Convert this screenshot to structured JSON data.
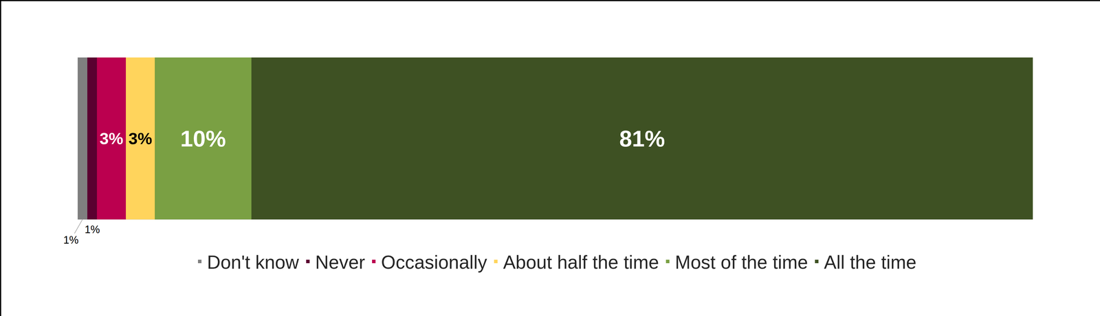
{
  "chart_data": {
    "type": "bar",
    "orientation": "horizontal",
    "stacked": true,
    "data_labels": true,
    "tick_labels": false,
    "grid": false,
    "legend": "bottom",
    "categories": [
      null
    ],
    "xlim": [
      0,
      99
    ],
    "series": [
      {
        "name": "Don't know",
        "color": "#7f7f7f",
        "values": [
          1
        ],
        "value_labels": [
          "1%"
        ]
      },
      {
        "name": "Never",
        "color": "#5a0030",
        "values": [
          1
        ],
        "value_labels": [
          "1%"
        ]
      },
      {
        "name": "Occasionally",
        "color": "#bb004f",
        "values": [
          3
        ],
        "value_labels": [
          "3%"
        ]
      },
      {
        "name": "About half the time",
        "color": "#ffd45c",
        "values": [
          3
        ],
        "value_labels": [
          "3%"
        ]
      },
      {
        "name": "Most of the time",
        "color": "#7aa043",
        "values": [
          10
        ],
        "value_labels": [
          "10%"
        ]
      },
      {
        "name": "All the time",
        "color": "#3e5123",
        "values": [
          81
        ],
        "value_labels": [
          "81%"
        ]
      }
    ]
  }
}
